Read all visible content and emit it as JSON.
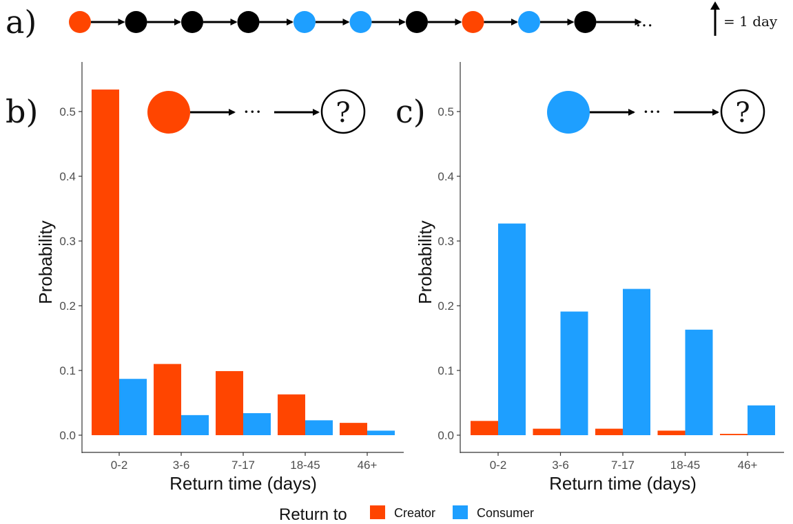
{
  "colors": {
    "creator": "#FF4500",
    "consumer": "#1E9FFF",
    "other": "#000000"
  },
  "panel_a": {
    "label": "a)",
    "sequence": [
      "creator",
      "other",
      "other",
      "other",
      "consumer",
      "consumer",
      "other",
      "creator",
      "consumer",
      "other"
    ],
    "ellipsis": "…",
    "scale_label": "= 1 day"
  },
  "panel_b": {
    "label": "b)",
    "start_node": "creator",
    "ellipsis": "···",
    "question": "?"
  },
  "panel_c": {
    "label": "c)",
    "start_node": "consumer",
    "ellipsis": "···",
    "question": "?"
  },
  "legend": {
    "title": "Return to",
    "items": [
      {
        "name": "Creator",
        "color_key": "creator"
      },
      {
        "name": "Consumer",
        "color_key": "consumer"
      }
    ]
  },
  "chart_data": [
    {
      "type": "bar",
      "panel": "b",
      "categories": [
        "0-2",
        "3-6",
        "7-17",
        "18-45",
        "46+"
      ],
      "series": [
        {
          "name": "Creator",
          "values": [
            0.534,
            0.11,
            0.099,
            0.063,
            0.019
          ]
        },
        {
          "name": "Consumer",
          "values": [
            0.087,
            0.031,
            0.034,
            0.023,
            0.007
          ]
        }
      ],
      "xlabel": "Return time (days)",
      "ylabel": "Probability",
      "ylim": [
        0,
        0.55
      ],
      "yticks": [
        "0.0",
        "0.1",
        "0.2",
        "0.3",
        "0.4",
        "0.5"
      ],
      "grid": false,
      "legend": "bottom"
    },
    {
      "type": "bar",
      "panel": "c",
      "categories": [
        "0-2",
        "3-6",
        "7-17",
        "18-45",
        "46+"
      ],
      "series": [
        {
          "name": "Creator",
          "values": [
            0.022,
            0.01,
            0.01,
            0.007,
            0.002
          ]
        },
        {
          "name": "Consumer",
          "values": [
            0.327,
            0.191,
            0.226,
            0.163,
            0.046
          ]
        }
      ],
      "xlabel": "Return time (days)",
      "ylabel": "Probability",
      "ylim": [
        0,
        0.55
      ],
      "yticks": [
        "0.0",
        "0.1",
        "0.2",
        "0.3",
        "0.4",
        "0.5"
      ],
      "grid": false,
      "legend": "bottom"
    }
  ]
}
